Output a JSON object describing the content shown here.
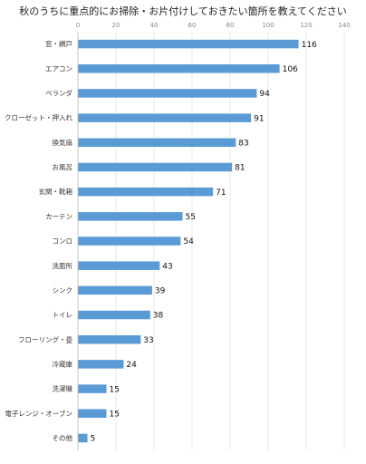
{
  "chart_data": {
    "type": "bar",
    "orientation": "horizontal",
    "title": "秋のうちに重点的にお掃除・お片付けしておきたい箇所を教えてください",
    "categories": [
      "窓・網戸",
      "エアコン",
      "ベランダ",
      "クローゼット・押入れ",
      "換気扇",
      "お風呂",
      "玄関・靴箱",
      "カーテン",
      "コンロ",
      "洗面所",
      "シンク",
      "トイレ",
      "フローリング・畳",
      "冷蔵庫",
      "洗濯機",
      "電子レンジ・オーブン",
      "その他"
    ],
    "values": [
      116,
      106,
      94,
      91,
      83,
      81,
      71,
      55,
      54,
      43,
      39,
      38,
      33,
      24,
      15,
      15,
      5
    ],
    "xlim": [
      0,
      140
    ],
    "xticks": [
      "0",
      "20",
      "40",
      "60",
      "80",
      "100",
      "120",
      "140"
    ],
    "xtick_values": [
      0,
      20,
      40,
      60,
      80,
      100,
      120,
      140
    ],
    "grid": true,
    "bar_color": "#5b9bd5",
    "grid_color": "#d9d9d9"
  }
}
